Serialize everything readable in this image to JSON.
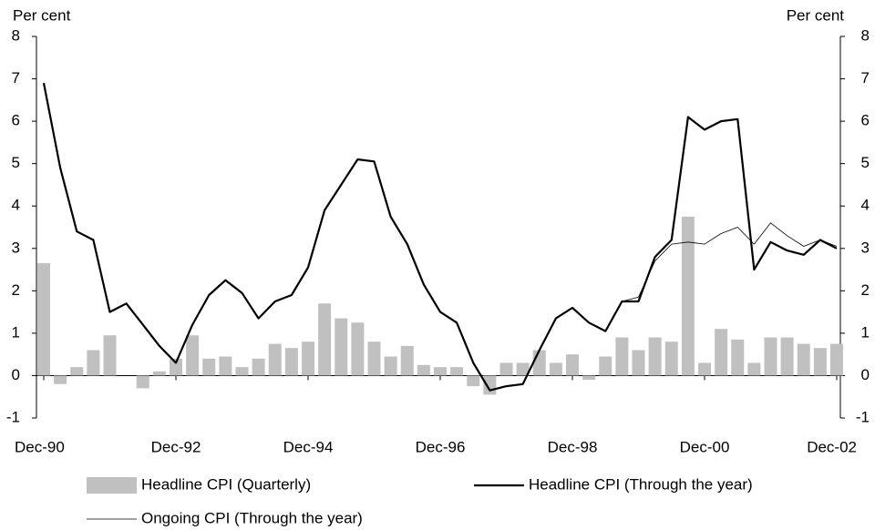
{
  "chart_data": {
    "type": "bar-line",
    "y_label_left": "Per cent",
    "y_label_right": "Per cent",
    "categories": [
      "Dec-90",
      null,
      null,
      null,
      null,
      null,
      null,
      null,
      "Dec-92",
      null,
      null,
      null,
      null,
      null,
      null,
      null,
      "Dec-94",
      null,
      null,
      null,
      null,
      null,
      null,
      null,
      "Dec-96",
      null,
      null,
      null,
      null,
      null,
      null,
      null,
      "Dec-98",
      null,
      null,
      null,
      null,
      null,
      null,
      null,
      "Dec-00",
      null,
      null,
      null,
      null,
      null,
      null,
      null,
      "Dec-02"
    ],
    "ylim": [
      -1,
      8
    ],
    "yticks": [
      -1,
      0,
      1,
      2,
      3,
      4,
      5,
      6,
      7,
      8
    ],
    "y2lim": [
      -1,
      8
    ],
    "y2ticks": [
      -1,
      0,
      1,
      2,
      3,
      4,
      5,
      6,
      7,
      8
    ],
    "series": [
      {
        "name": "Headline CPI (Quarterly)",
        "kind": "bar",
        "color": "#c0c0c0",
        "values": [
          2.65,
          -0.2,
          0.2,
          0.6,
          0.95,
          0,
          -0.3,
          0.1,
          0.4,
          0.95,
          0.4,
          0.45,
          0.2,
          0.4,
          0.75,
          0.65,
          0.8,
          1.7,
          1.35,
          1.25,
          0.8,
          0.45,
          0.7,
          0.25,
          0.2,
          0.2,
          -0.25,
          -0.45,
          0.3,
          0.3,
          0.6,
          0.3,
          0.5,
          -0.1,
          0.45,
          0.9,
          0.6,
          0.9,
          0.8,
          3.75,
          0.3,
          1.1,
          0.85,
          0.3,
          0.9,
          0.9,
          0.75,
          0.65,
          0.75
        ]
      },
      {
        "name": "Headline CPI (Through the year)",
        "kind": "line",
        "color": "#000000",
        "width": 2.2,
        "values": [
          6.9,
          4.9,
          3.4,
          3.2,
          1.5,
          1.7,
          1.2,
          0.7,
          0.3,
          1.2,
          1.9,
          2.25,
          1.95,
          1.35,
          1.75,
          1.9,
          2.55,
          3.9,
          4.5,
          5.1,
          5.05,
          3.75,
          3.1,
          2.15,
          1.5,
          1.25,
          0.3,
          -0.35,
          -0.25,
          -0.2,
          0.6,
          1.35,
          1.6,
          1.25,
          1.05,
          1.75,
          1.75,
          2.8,
          3.2,
          6.1,
          5.8,
          6.0,
          6.05,
          2.5,
          3.15,
          2.95,
          2.85,
          3.2,
          3.0
        ]
      },
      {
        "name": "Ongoing CPI (Through the year)",
        "kind": "line",
        "color": "#000000",
        "width": 0.8,
        "values": [
          null,
          null,
          null,
          null,
          null,
          null,
          null,
          null,
          null,
          null,
          null,
          null,
          null,
          null,
          null,
          null,
          null,
          null,
          null,
          null,
          null,
          null,
          null,
          null,
          null,
          null,
          null,
          null,
          null,
          null,
          null,
          null,
          null,
          null,
          null,
          1.75,
          1.85,
          2.7,
          3.1,
          3.15,
          3.1,
          3.35,
          3.5,
          3.1,
          3.6,
          3.3,
          3.05,
          3.2,
          3.05
        ]
      }
    ]
  }
}
